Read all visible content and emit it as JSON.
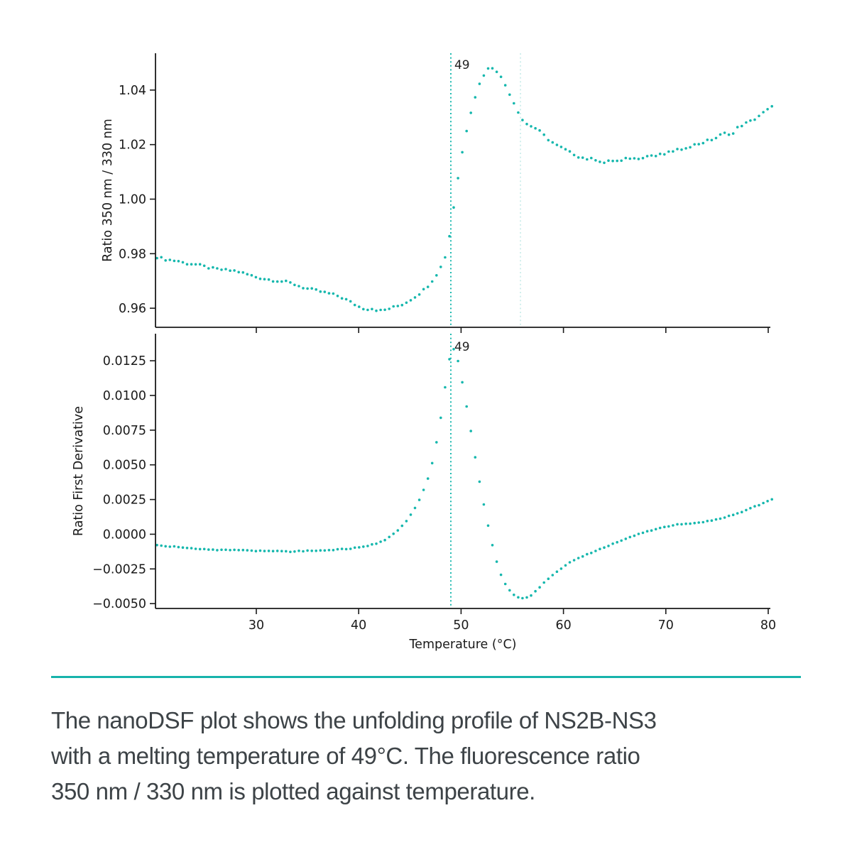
{
  "page": {
    "background": "#ffffff"
  },
  "colors": {
    "marker_teal": "#15b7ad",
    "faint_teal": "#c6ebe8",
    "axis_black": "#1a1a1a",
    "annotation_dark": "#212121",
    "divider_teal": "#17b3ab",
    "caption_gray": "#3d4347"
  },
  "chart_data": [
    {
      "type": "scatter",
      "subplot": "top",
      "title": "",
      "xlabel": "",
      "ylabel": "Ratio 350 nm / 330 nm",
      "xlim": [
        20.1,
        80.5
      ],
      "ylim": [
        0.953,
        1.0535
      ],
      "x_ticks": [
        30,
        40,
        50,
        60,
        70,
        80
      ],
      "x_tick_labels": [],
      "y_ticks": [
        0.96,
        0.98,
        1.0,
        1.02,
        1.04
      ],
      "y_tick_labels": [
        "0.96",
        "0.98",
        "1.00",
        "1.02",
        "1.04"
      ],
      "grid": false,
      "legend": "none",
      "melting_line": {
        "x": 49,
        "label": "49"
      },
      "onset_line": {
        "x": 55.8
      },
      "point_spacing_c": 0.42,
      "noise_amp": 0.00045,
      "series": [
        {
          "name": "Ratio 350 nm / 330 nm",
          "anchors": [
            [
              20.3,
              0.9788
            ],
            [
              21,
              0.978
            ],
            [
              21.7,
              0.9776
            ],
            [
              22.4,
              0.9773
            ],
            [
              23,
              0.9765
            ],
            [
              23.6,
              0.9763
            ],
            [
              24.2,
              0.976
            ],
            [
              25,
              0.9752
            ],
            [
              25.8,
              0.9745
            ],
            [
              26.5,
              0.9742
            ],
            [
              27.2,
              0.9739
            ],
            [
              28,
              0.9737
            ],
            [
              28.7,
              0.9729
            ],
            [
              29.4,
              0.9721
            ],
            [
              30,
              0.9714
            ],
            [
              30.8,
              0.9708
            ],
            [
              31.6,
              0.9703
            ],
            [
              32.4,
              0.9699
            ],
            [
              33.2,
              0.9694
            ],
            [
              34,
              0.9684
            ],
            [
              34.8,
              0.9673
            ],
            [
              35.6,
              0.9667
            ],
            [
              36.4,
              0.966
            ],
            [
              37.2,
              0.9653
            ],
            [
              38,
              0.9645
            ],
            [
              38.8,
              0.9631
            ],
            [
              39.6,
              0.9614
            ],
            [
              40.2,
              0.9602
            ],
            [
              40.8,
              0.9597
            ],
            [
              41.4,
              0.9599
            ],
            [
              42,
              0.959
            ],
            [
              42.6,
              0.9594
            ],
            [
              43.2,
              0.9601
            ],
            [
              43.8,
              0.9608
            ],
            [
              44.4,
              0.9616
            ],
            [
              45,
              0.963
            ],
            [
              45.6,
              0.9645
            ],
            [
              46.2,
              0.9662
            ],
            [
              46.8,
              0.9684
            ],
            [
              47.4,
              0.9712
            ],
            [
              48,
              0.9749
            ],
            [
              48.4,
              0.9782
            ],
            [
              48.8,
              0.985
            ],
            [
              49.2,
              0.995
            ],
            [
              49.6,
              1.0055
            ],
            [
              50,
              1.0148
            ],
            [
              50.4,
              1.0228
            ],
            [
              50.8,
              1.0298
            ],
            [
              51.2,
              1.0355
            ],
            [
              51.6,
              1.0402
            ],
            [
              52,
              1.0442
            ],
            [
              52.4,
              1.0468
            ],
            [
              52.8,
              1.0484
            ],
            [
              53.2,
              1.0482
            ],
            [
              53.6,
              1.0466
            ],
            [
              54,
              1.044
            ],
            [
              54.5,
              1.0406
            ],
            [
              55,
              1.0366
            ],
            [
              55.5,
              1.0327
            ],
            [
              56,
              1.0291
            ],
            [
              56.4,
              1.0276
            ],
            [
              56.8,
              1.0269
            ],
            [
              57.2,
              1.0262
            ],
            [
              57.6,
              1.0251
            ],
            [
              58,
              1.0237
            ],
            [
              58.5,
              1.022
            ],
            [
              59,
              1.0206
            ],
            [
              59.5,
              1.0193
            ],
            [
              60,
              1.0186
            ],
            [
              60.5,
              1.0173
            ],
            [
              61,
              1.0166
            ],
            [
              61.5,
              1.0156
            ],
            [
              62,
              1.0151
            ],
            [
              62.5,
              1.0146
            ],
            [
              63,
              1.0148
            ],
            [
              63.5,
              1.0141
            ],
            [
              64,
              1.0133
            ],
            [
              64.5,
              1.0139
            ],
            [
              65,
              1.0143
            ],
            [
              65.5,
              1.0136
            ],
            [
              66,
              1.0146
            ],
            [
              66.5,
              1.0151
            ],
            [
              67,
              1.0148
            ],
            [
              67.5,
              1.0153
            ],
            [
              68,
              1.0156
            ],
            [
              68.5,
              1.0161
            ],
            [
              69,
              1.0158
            ],
            [
              69.5,
              1.0163
            ],
            [
              70,
              1.0166
            ],
            [
              70.5,
              1.0173
            ],
            [
              71,
              1.0183
            ],
            [
              71.5,
              1.0176
            ],
            [
              72,
              1.0191
            ],
            [
              72.5,
              1.0196
            ],
            [
              73,
              1.0201
            ],
            [
              73.5,
              1.0206
            ],
            [
              74,
              1.0213
            ],
            [
              74.5,
              1.0219
            ],
            [
              75,
              1.0226
            ],
            [
              75.5,
              1.0239
            ],
            [
              76,
              1.0243
            ],
            [
              76.5,
              1.0236
            ],
            [
              77,
              1.0261
            ],
            [
              77.5,
              1.0273
            ],
            [
              78,
              1.0281
            ],
            [
              78.5,
              1.0289
            ],
            [
              79,
              1.0303
            ],
            [
              79.5,
              1.0316
            ],
            [
              80,
              1.0329
            ],
            [
              80.4,
              1.0338
            ]
          ]
        }
      ]
    },
    {
      "type": "scatter",
      "subplot": "bottom",
      "title": "",
      "xlabel": "Temperature (°C)",
      "ylabel": "Ratio First Derivative",
      "xlim": [
        20.1,
        80.5
      ],
      "ylim": [
        -0.00535,
        0.01445
      ],
      "x_ticks": [
        30,
        40,
        50,
        60,
        70,
        80
      ],
      "x_tick_labels": [
        "30",
        "40",
        "50",
        "60",
        "70",
        "80"
      ],
      "y_ticks": [
        0.0125,
        0.01,
        0.0075,
        0.005,
        0.0025,
        0.0,
        -0.0025,
        -0.005
      ],
      "y_tick_labels": [
        "0.0125",
        "0.0100",
        "0.0075",
        "0.0050",
        "0.0025",
        "0.0000",
        "−0.0025",
        "−0.0050"
      ],
      "grid": false,
      "legend": "none",
      "melting_line": {
        "x": 49,
        "label": "49"
      },
      "point_spacing_c": 0.42,
      "noise_amp": 3e-05,
      "series": [
        {
          "name": "Ratio First Derivative",
          "anchors": [
            [
              20.3,
              -0.0008
            ],
            [
              21,
              -0.00085
            ],
            [
              22,
              -0.0009
            ],
            [
              23,
              -0.001
            ],
            [
              24,
              -0.00105
            ],
            [
              25,
              -0.0011
            ],
            [
              26,
              -0.00112
            ],
            [
              27,
              -0.00115
            ],
            [
              28,
              -0.00115
            ],
            [
              29,
              -0.00118
            ],
            [
              30,
              -0.0012
            ],
            [
              31,
              -0.00122
            ],
            [
              32,
              -0.00122
            ],
            [
              33,
              -0.00125
            ],
            [
              34,
              -0.00123
            ],
            [
              35,
              -0.0012
            ],
            [
              36,
              -0.00118
            ],
            [
              37,
              -0.00115
            ],
            [
              38,
              -0.0011
            ],
            [
              39,
              -0.00105
            ],
            [
              40,
              -0.00095
            ],
            [
              41,
              -0.0008
            ],
            [
              42,
              -0.0006
            ],
            [
              42.5,
              -0.00045
            ],
            [
              43,
              -0.0002
            ],
            [
              43.5,
              0.0001
            ],
            [
              44,
              0.0004
            ],
            [
              44.4,
              0.0007
            ],
            [
              44.8,
              0.0011
            ],
            [
              45.2,
              0.0015
            ],
            [
              45.6,
              0.002
            ],
            [
              46,
              0.0026
            ],
            [
              46.4,
              0.0033
            ],
            [
              46.8,
              0.0041
            ],
            [
              47.2,
              0.0052
            ],
            [
              47.6,
              0.0066
            ],
            [
              48,
              0.0083
            ],
            [
              48.3,
              0.0098
            ],
            [
              48.6,
              0.0115
            ],
            [
              48.9,
              0.0128
            ],
            [
              49.1,
              0.0132
            ],
            [
              49.35,
              0.0134
            ],
            [
              49.6,
              0.0128
            ],
            [
              49.9,
              0.0118
            ],
            [
              50.2,
              0.0106
            ],
            [
              50.5,
              0.0094
            ],
            [
              50.9,
              0.0077
            ],
            [
              51.3,
              0.0059
            ],
            [
              51.7,
              0.0042
            ],
            [
              52.1,
              0.0026
            ],
            [
              52.5,
              0.0011
            ],
            [
              52.9,
              -0.0003
            ],
            [
              53.3,
              -0.0015
            ],
            [
              53.7,
              -0.0025
            ],
            [
              54.1,
              -0.0033
            ],
            [
              54.5,
              -0.0038
            ],
            [
              54.9,
              -0.0042
            ],
            [
              55.3,
              -0.00445
            ],
            [
              55.7,
              -0.0046
            ],
            [
              56.1,
              -0.00462
            ],
            [
              56.5,
              -0.00455
            ],
            [
              56.9,
              -0.0044
            ],
            [
              57.3,
              -0.0041
            ],
            [
              57.7,
              -0.0038
            ],
            [
              58.2,
              -0.0034
            ],
            [
              58.7,
              -0.0031
            ],
            [
              59.2,
              -0.0028
            ],
            [
              59.7,
              -0.0025
            ],
            [
              60.2,
              -0.00225
            ],
            [
              60.7,
              -0.002
            ],
            [
              61.2,
              -0.0018
            ],
            [
              61.7,
              -0.00165
            ],
            [
              62.2,
              -0.0015
            ],
            [
              62.7,
              -0.00135
            ],
            [
              63.2,
              -0.0012
            ],
            [
              63.7,
              -0.00105
            ],
            [
              64.2,
              -0.0009
            ],
            [
              64.7,
              -0.00075
            ],
            [
              65.2,
              -0.0006
            ],
            [
              65.7,
              -0.00045
            ],
            [
              66.2,
              -0.0003
            ],
            [
              66.7,
              -0.00015
            ],
            [
              67.2,
              0.0
            ],
            [
              67.7,
              0.0001
            ],
            [
              68.2,
              0.0002
            ],
            [
              68.7,
              0.0003
            ],
            [
              69.2,
              0.0004
            ],
            [
              69.7,
              0.0005
            ],
            [
              70.2,
              0.00058
            ],
            [
              70.7,
              0.00065
            ],
            [
              71.2,
              0.0007
            ],
            [
              71.7,
              0.00075
            ],
            [
              72.2,
              0.00078
            ],
            [
              72.7,
              0.0008
            ],
            [
              73.2,
              0.00085
            ],
            [
              73.7,
              0.0009
            ],
            [
              74.2,
              0.00095
            ],
            [
              74.7,
              0.001
            ],
            [
              75.2,
              0.0011
            ],
            [
              75.7,
              0.0012
            ],
            [
              76.2,
              0.0013
            ],
            [
              76.7,
              0.0014
            ],
            [
              77.2,
              0.00155
            ],
            [
              77.7,
              0.0017
            ],
            [
              78.2,
              0.00185
            ],
            [
              78.7,
              0.002
            ],
            [
              79.2,
              0.0021
            ],
            [
              79.7,
              0.0023
            ],
            [
              80.4,
              0.0025
            ]
          ]
        }
      ]
    }
  ],
  "divider": {
    "color": "#17b3ab"
  },
  "caption": {
    "color": "#3d4347",
    "lines": [
      "The nanoDSF plot shows the unfolding profile of NS2B-NS3",
      "with a melting temperature of 49°C. The fluorescence ratio",
      "350 nm / 330 nm is plotted against temperature."
    ]
  }
}
